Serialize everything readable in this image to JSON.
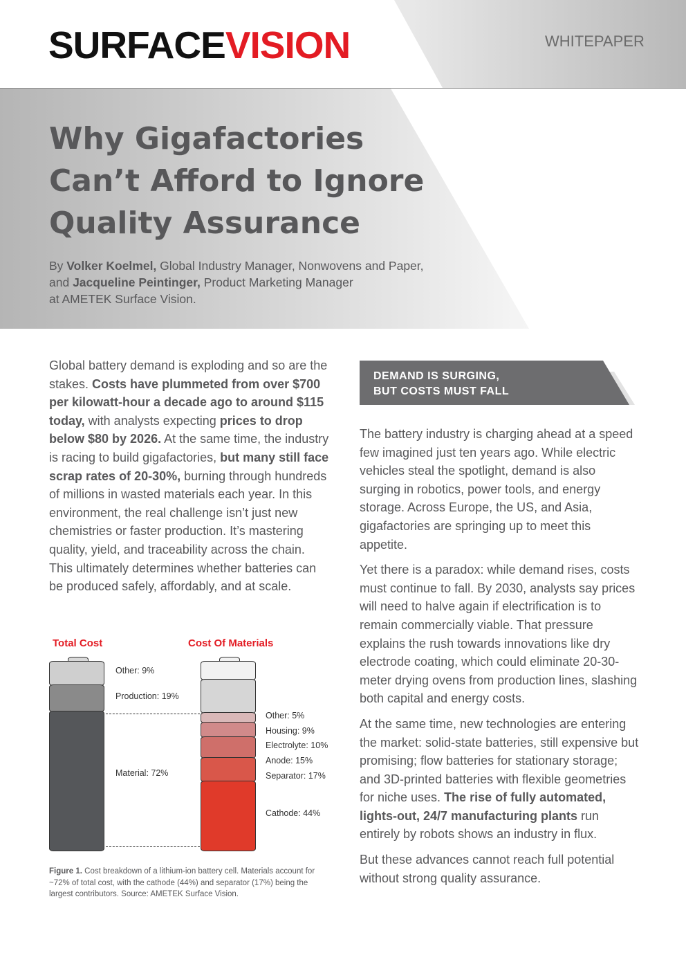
{
  "header": {
    "logo_text": "SURFACEVISION",
    "logo_part1": "SURFACE",
    "logo_part2": "VISION",
    "label": "WHITEPAPER"
  },
  "title": {
    "line1": "Why Gigafactories",
    "line2": "Can’t Afford to Ignore",
    "line3": "Quality Assurance"
  },
  "byline": {
    "by": "By ",
    "author1": "Volker Koelmel,",
    "role1": " Global Industry Manager, Nonwovens and Paper,",
    "and": "and ",
    "author2": "Jacqueline Peintinger,",
    "role2": " Product Marketing Manager",
    "company": "at AMETEK Surface Vision."
  },
  "left_column": {
    "p1": [
      {
        "t": "Global battery demand is exploding and so are the stakes. ",
        "b": false
      },
      {
        "t": "Costs have plummeted from over $700 per kilowatt-hour a decade ago to around $115 today,",
        "b": true
      },
      {
        "t": " with analysts expecting ",
        "b": false
      },
      {
        "t": "prices to drop below $80 by 2026.",
        "b": true
      },
      {
        "t": " At the same time, the industry is racing to build gigafactories, ",
        "b": false
      },
      {
        "t": "but many still face scrap rates of 20-30%,",
        "b": true
      },
      {
        "t": " burning through hundreds of millions in wasted materials each year. In this environment, the real challenge isn’t just new chemistries or faster production. It’s mastering quality, yield, and traceability across the chain. This ultimately determines whether batteries can be produced safely, affordably, and at scale.",
        "b": false
      }
    ]
  },
  "figure": {
    "left_title": "Total Cost",
    "right_title": "Cost Of Materials",
    "total_cost": [
      {
        "label": "Other: 9%",
        "value": 9
      },
      {
        "label": "Production: 19%",
        "value": 19
      },
      {
        "label": "Material: 72%",
        "value": 72
      }
    ],
    "materials": [
      {
        "label": "Other: 5%",
        "value": 5
      },
      {
        "label": "Housing: 9%",
        "value": 9
      },
      {
        "label": "Electrolyte: 10%",
        "value": 10
      },
      {
        "label": "Anode: 15%",
        "value": 15
      },
      {
        "label": "Separator: 17%",
        "value": 17
      },
      {
        "label": "Cathode: 44%",
        "value": 44
      }
    ],
    "caption_bold": "Figure 1.",
    "caption": " Cost breakdown of a lithium-ion battery cell. Materials account for ~72% of total cost, with the cathode (44%) and separator (17%) being the largest contributors. Source: AMETEK Surface Vision.",
    "colors": {
      "dark": "#55575a",
      "mid": "#8a8a8a",
      "light": "#cfcfcf",
      "red": "#e03a2a"
    }
  },
  "section": {
    "heading_line1": "DEMAND IS SURGING,",
    "heading_line2": "BUT COSTS MUST FALL"
  },
  "right_column": {
    "p1": "The battery industry is charging ahead at a speed few imagined just ten years ago. While electric vehicles steal the spotlight, demand is also surging in robotics, power tools, and energy storage. Across Europe, the US, and Asia, gigafactories are springing up to meet this appetite.",
    "p2": "Yet there is a paradox: while demand rises, costs must continue to fall. By 2030, analysts say prices will need to halve again if electrification is to remain commercially viable. That pressure explains the rush towards innovations like dry electrode coating, which could eliminate 20-30-meter drying ovens from production lines, slashing both capital and energy costs.",
    "p3a": "At the same time, new technologies are entering the market: solid-state batteries, still expensive but promising; flow batteries for stationary storage; and 3D-printed batteries with flexible geometries for niche uses. ",
    "p3b": "The rise of fully automated, lights-out, 24/7 manufacturing plants",
    "p3c": " run entirely by robots shows an industry in flux.",
    "p4": "But these advances cannot reach full potential without strong quality assurance."
  }
}
